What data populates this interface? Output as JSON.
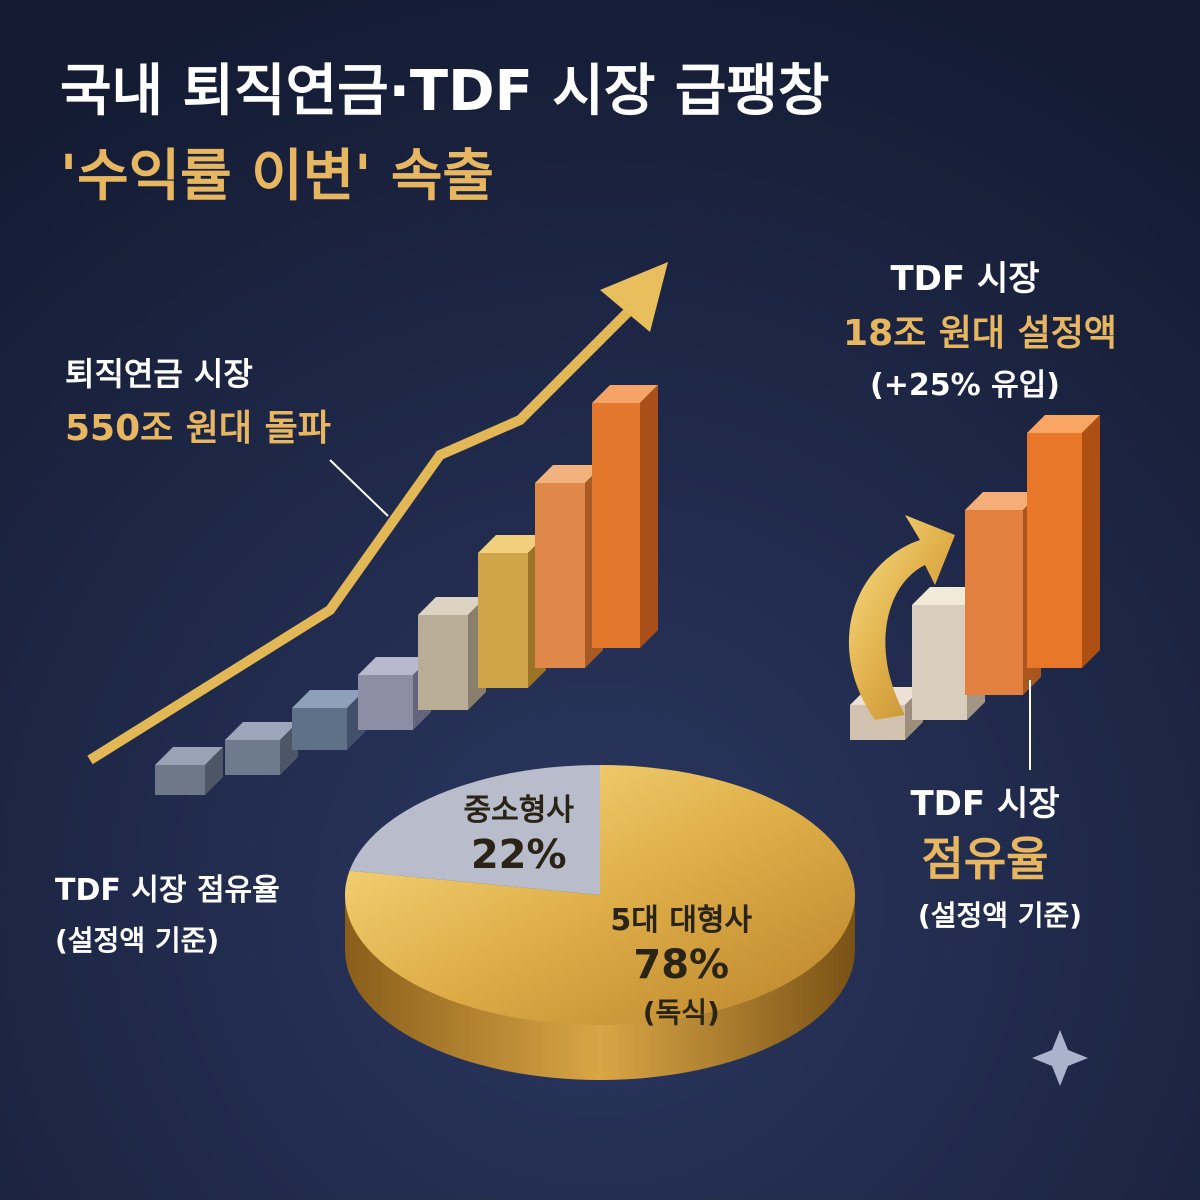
{
  "title": [
    "국내 퇴직연금·TDF 시장 급팽창",
    "'수익률 이변' 속출"
  ],
  "pension_callout": {
    "label": "퇴직연금 시장",
    "value": "550조 원대 돌파"
  },
  "tdf_callout": {
    "label": "TDF 시장",
    "value": "18조 원대 설정액",
    "note": "(+25% 유입)"
  },
  "share_callout": {
    "label": "TDF 시장",
    "value": "점유율",
    "note": "(설정액 기준)"
  },
  "pie_caption": {
    "label": "TDF 시장 점유율",
    "note": "(설정액 기준)"
  },
  "pie": {
    "slices": [
      {
        "name": "5대 대형사",
        "value": 78,
        "label": "78%",
        "note": "(독식)"
      },
      {
        "name": "중소형사",
        "value": 22,
        "label": "22%"
      }
    ]
  }
}
